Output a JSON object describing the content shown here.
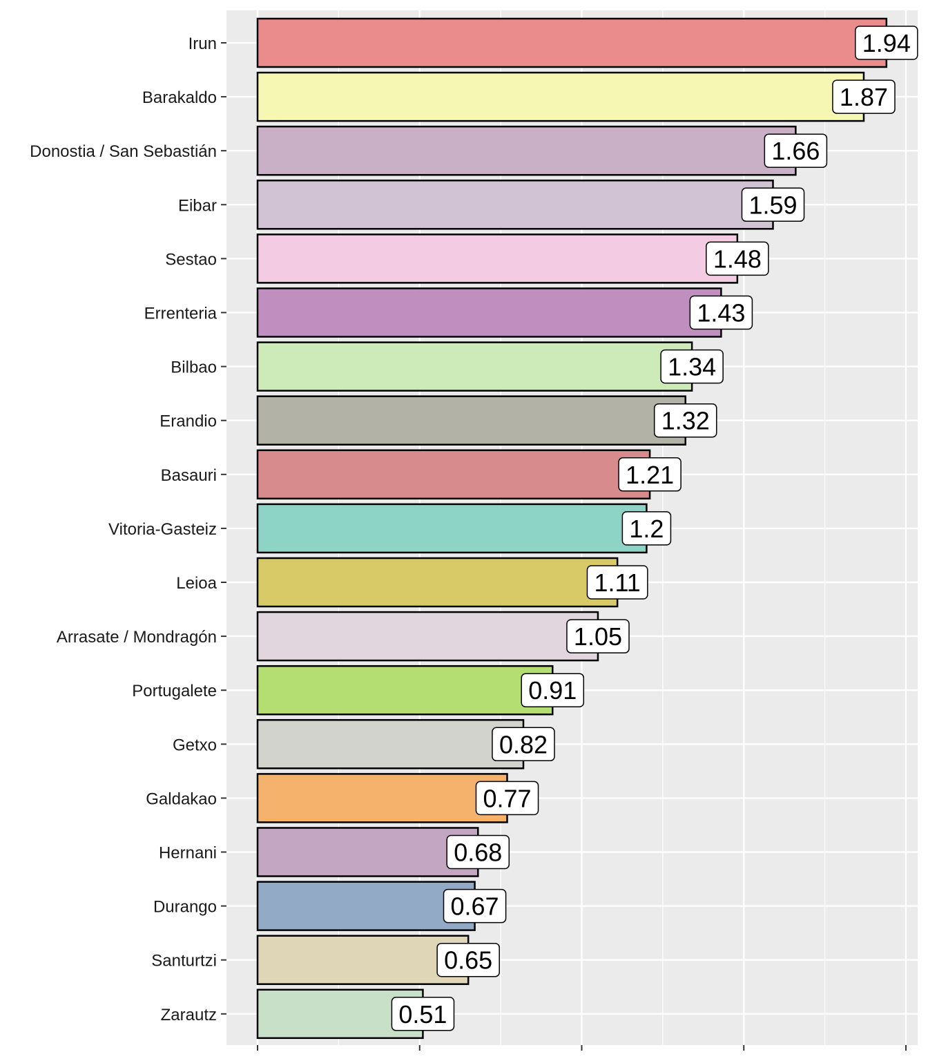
{
  "chart_data": {
    "type": "bar",
    "orientation": "horizontal",
    "title": "",
    "xlabel": "",
    "ylabel": "",
    "xlim": [
      0,
      2
    ],
    "x_gridlines_major": [
      0,
      0.5,
      1,
      1.5,
      2
    ],
    "x_tick_labels_visible": false,
    "categories": [
      "Irun",
      "Barakaldo",
      "Donostia / San Sebastián",
      "Eibar",
      "Sestao",
      "Errenteria",
      "Bilbao",
      "Erandio",
      "Basauri",
      "Vitoria-Gasteiz",
      "Leioa",
      "Arrasate / Mondragón",
      "Portugalete",
      "Getxo",
      "Galdakao",
      "Hernani",
      "Durango",
      "Santurtzi",
      "Zarautz"
    ],
    "values": [
      1.94,
      1.87,
      1.66,
      1.59,
      1.48,
      1.43,
      1.34,
      1.32,
      1.21,
      1.2,
      1.11,
      1.05,
      0.91,
      0.82,
      0.77,
      0.68,
      0.67,
      0.65,
      0.51
    ],
    "value_labels": [
      "1.94",
      "1.87",
      "1.66",
      "1.59",
      "1.48",
      "1.43",
      "1.34",
      "1.32",
      "1.21",
      "1.2",
      "1.11",
      "1.05",
      "0.91",
      "0.82",
      "0.77",
      "0.68",
      "0.67",
      "0.65",
      "0.51"
    ],
    "colors": [
      "#EB8C8C",
      "#F7F7B4",
      "#CAB0C7",
      "#D1C3D3",
      "#F3CCE4",
      "#C08FC0",
      "#CDEBB8",
      "#B2B3A6",
      "#D88B8C",
      "#8DD4C7",
      "#D8CA66",
      "#E1D6DD",
      "#B4DE72",
      "#D3D3CE",
      "#F4B26C",
      "#C2A6C2",
      "#93AAC6",
      "#DFD6B8",
      "#C9E0C8"
    ],
    "panel_background": "#EBEBEB",
    "grid_color": "#FFFFFF",
    "bar_outline_color": "#000000",
    "legend": "none"
  }
}
